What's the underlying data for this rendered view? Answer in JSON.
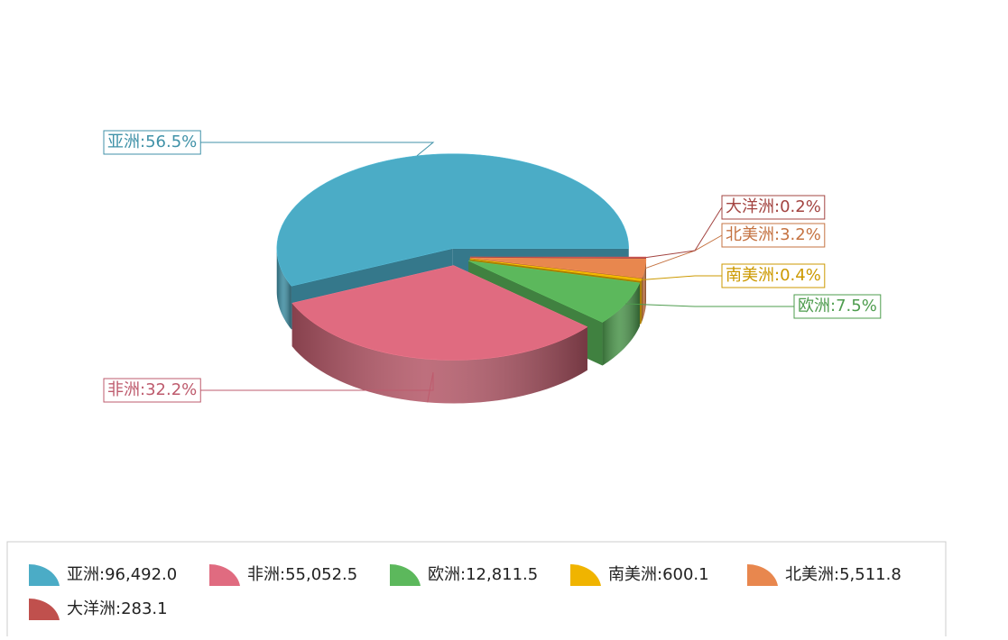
{
  "chart_data": {
    "type": "pie3d",
    "labels": [
      "亚洲:56.5%",
      "非洲:32.2%",
      "欧洲:7.5%",
      "南美洲:0.4%",
      "北美洲:3.2%",
      "大洋洲:0.2%"
    ],
    "legend_labels": [
      "亚洲:96,492.0",
      "非洲:55,052.5",
      "欧洲:12,811.5",
      "南美洲:600.1",
      "北美洲:5,511.8",
      "大洋洲:283.1"
    ],
    "values": [
      96492.0,
      55052.5,
      12811.5,
      600.1,
      5511.8,
      283.1
    ],
    "colors": [
      "#4bacc6",
      "#e06b80",
      "#5cb85c",
      "#f0b400",
      "#e8874e",
      "#c0504d"
    ],
    "legend": "bottom"
  }
}
